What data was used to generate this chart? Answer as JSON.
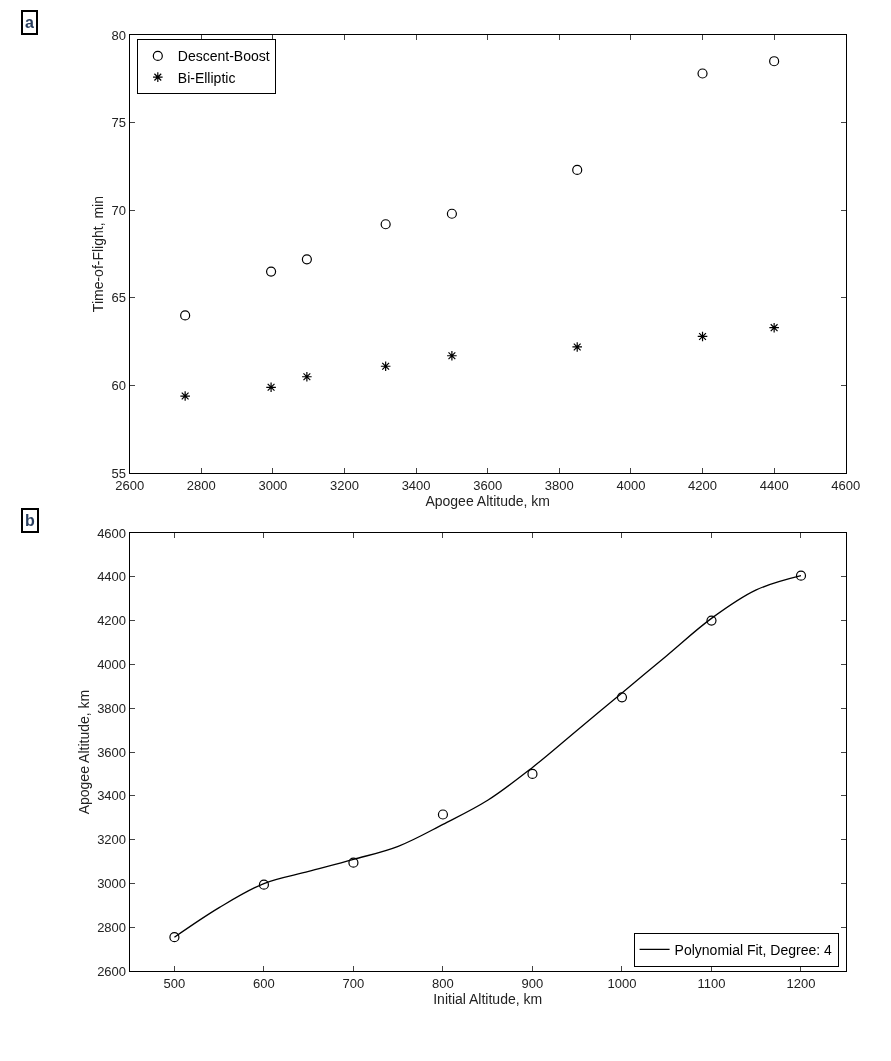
{
  "chart_data": [
    {
      "type": "scatter",
      "xlabel": "Apogee Altitude, km",
      "ylabel": "Time-of-Flight, min",
      "annotations": [
        "a"
      ],
      "xlim": [
        2600,
        4600
      ],
      "xticks": [
        2600,
        2800,
        3000,
        3200,
        3400,
        3600,
        3800,
        4000,
        4200,
        4400,
        4600
      ],
      "ylim": [
        55,
        80
      ],
      "yticks": [
        55,
        60,
        65,
        70,
        75,
        80
      ],
      "legend": "top left",
      "x": [
        2755,
        2995,
        3095,
        3315,
        3500,
        3850,
        4200,
        4400
      ],
      "series": [
        {
          "name": "Descent-Boost",
          "color": "#000000",
          "marker": "circle",
          "values": [
            64.0,
            66.5,
            67.2,
            69.2,
            69.8,
            72.3,
            77.8,
            78.5
          ]
        },
        {
          "name": "Bi-Elliptic",
          "color": "#000000",
          "marker": "cross",
          "values": [
            59.4,
            59.9,
            60.5,
            61.1,
            61.7,
            62.2,
            62.8,
            63.3
          ]
        }
      ]
    },
    {
      "type": "scatter",
      "xlabel": "Initial Altitude, km",
      "ylabel": "Apogee Altitude, km",
      "annotations": [
        "b"
      ],
      "xlim": [
        450,
        1250
      ],
      "xticks": [
        500,
        600,
        700,
        800,
        900,
        1000,
        1100,
        1200
      ],
      "ylim": [
        2600,
        4600
      ],
      "yticks": [
        2600,
        2800,
        3000,
        3200,
        3400,
        3600,
        3800,
        4000,
        4200,
        4400,
        4600
      ],
      "legend": "bottom right",
      "series": [
        {
          "color": "#000000",
          "marker": "circle",
          "x": [
            500,
            600,
            700,
            800,
            900,
            1000,
            1100,
            1200
          ],
          "values": [
            2755,
            2995,
            3095,
            3315,
            3500,
            3850,
            4200,
            4405
          ]
        },
        {
          "name": "Polynomial Fit, Degree: 4",
          "type": "line",
          "color": "#000000",
          "marker": "none",
          "line_style": "solid",
          "x": [
            500,
            550,
            600,
            650,
            700,
            750,
            800,
            850,
            900,
            950,
            1000,
            1050,
            1100,
            1150,
            1200
          ],
          "values": [
            2755,
            2890,
            3000,
            3055,
            3110,
            3170,
            3270,
            3380,
            3530,
            3700,
            3870,
            4040,
            4210,
            4340,
            4405
          ]
        }
      ]
    }
  ]
}
